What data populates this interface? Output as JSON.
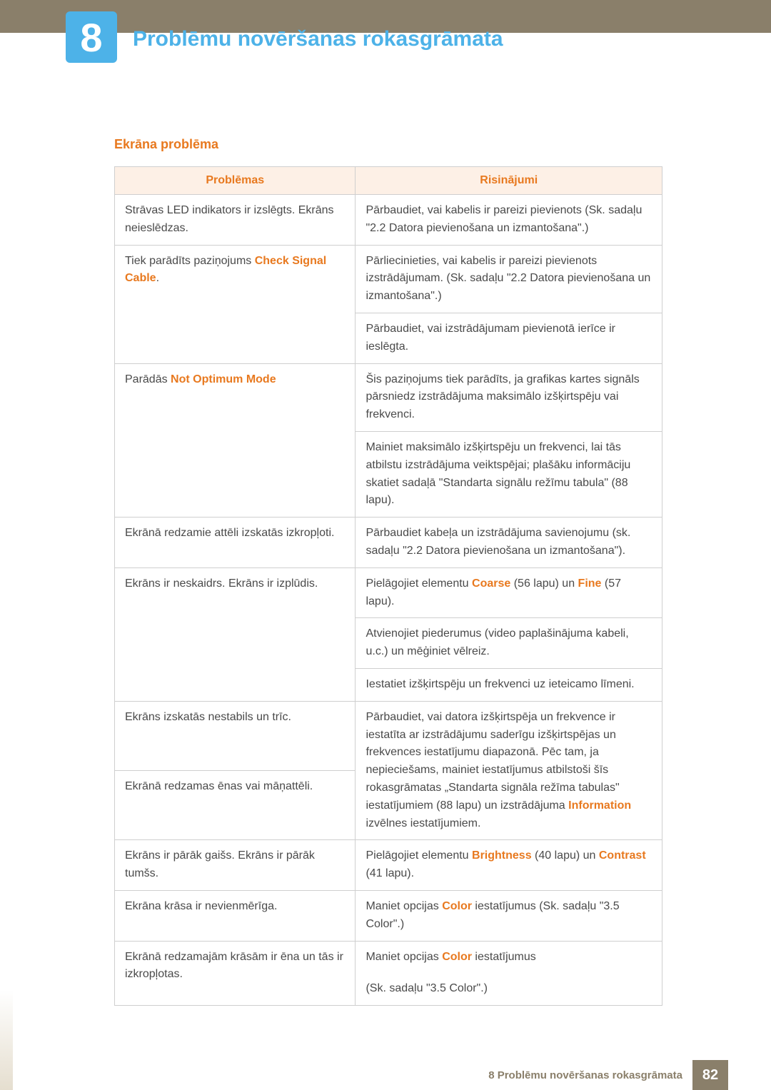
{
  "chapter": {
    "number": "8",
    "title": "Problēmu novēršanas rokasgrāmata"
  },
  "section": {
    "heading": "Ekrāna problēma"
  },
  "table": {
    "headers": {
      "problems": "Problēmas",
      "solutions": "Risinājumi"
    },
    "r1_p": "Strāvas LED indikators ir izslēgts. Ekrāns neieslēdzas.",
    "r1_s": "Pārbaudiet, vai kabelis ir pareizi pievienots (Sk. sadaļu \"2.2 Datora pievienošana un izmantošana\".)",
    "r2_p_a": "Tiek parādīts paziņojums ",
    "r2_p_b": "Check Signal Cable",
    "r2_p_c": ".",
    "r2_s": "Pārliecinieties, vai kabelis ir pareizi pievienots izstrādājumam. (Sk. sadaļu \"2.2 Datora pievienošana un izmantošana\".)",
    "r2_s2": "Pārbaudiet, vai izstrādājumam pievienotā ierīce ir ieslēgta.",
    "r3_p_a": "Parādās ",
    "r3_p_b": "Not Optimum Mode",
    "r3_s": "Šis paziņojums tiek parādīts, ja grafikas kartes signāls pārsniedz izstrādājuma maksimālo izšķirtspēju vai frekvenci.",
    "r3_s2": "Mainiet maksimālo izšķirtspēju un frekvenci, lai tās atbilstu izstrādājuma veiktspējai; plašāku informāciju skatiet sadaļā \"Standarta signālu režīmu tabula\" (88 lapu).",
    "r4_p": "Ekrānā redzamie attēli izskatās izkropļoti.",
    "r4_s": "Pārbaudiet kabeļa un izstrādājuma savienojumu (sk. sadaļu \"2.2 Datora pievienošana un izmantošana\").",
    "r5_p": "Ekrāns ir neskaidrs. Ekrāns ir izplūdis.",
    "r5_s_a": "Pielāgojiet elementu ",
    "r5_s_b": "Coarse",
    "r5_s_c": " (56 lapu) un ",
    "r5_s_d": "Fine",
    "r5_s_e": " (57 lapu).",
    "r5_s2": "Atvienojiet piederumus (video paplašinājuma kabeli, u.c.) un mēģiniet vēlreiz.",
    "r5_s3": "Iestatiet izšķirtspēju un frekvenci uz ieteicamo līmeni.",
    "r6_p": "Ekrāns izskatās nestabils un trīc.",
    "r7_p": "Ekrānā redzamas ēnas vai māņattēli.",
    "r6_s_a": "Pārbaudiet, vai datora izšķirtspēja un frekvence ir iestatīta ar izstrādājumu saderīgu izšķirtspējas un frekvences iestatījumu diapazonā. Pēc tam, ja nepieciešams, mainiet iestatījumus atbilstoši šīs rokasgrāmatas „Standarta signāla režīma tabulas\" iestatījumiem (88 lapu) un izstrādājuma ",
    "r6_s_b": "Information",
    "r6_s_c": " izvēlnes iestatījumiem.",
    "r8_p": "Ekrāns ir pārāk gaišs. Ekrāns ir pārāk tumšs.",
    "r8_s_a": "Pielāgojiet elementu ",
    "r8_s_b": "Brightness",
    "r8_s_c": " (40 lapu) un ",
    "r8_s_d": "Contrast",
    "r8_s_e": " (41 lapu).",
    "r9_p": "Ekrāna krāsa ir nevienmērīga.",
    "r9_s_a": "Maniet opcijas ",
    "r9_s_b": "Color",
    "r9_s_c": " iestatījumus (Sk. sadaļu \"3.5 Color\".)",
    "r10_p": "Ekrānā redzamajām krāsām ir ēna un tās ir izkropļotas.",
    "r10_s1_a": "Maniet opcijas ",
    "r10_s1_b": "Color",
    "r10_s1_c": " iestatījumus",
    "r10_s2": "(Sk. sadaļu \"3.5 Color\".)"
  },
  "footer": {
    "text": "8 Problēmu novēršanas rokasgrāmata",
    "page": "82"
  }
}
